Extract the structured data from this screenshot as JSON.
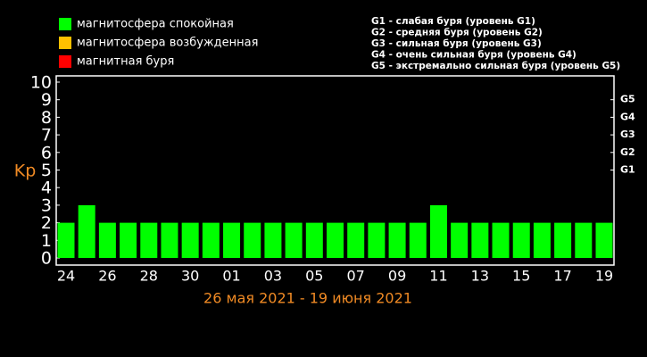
{
  "chart_data": {
    "type": "bar",
    "y_label": "Kp",
    "x_label": "26 мая 2021 - 19 июня 2021",
    "legend": [
      {
        "name": "магнитосфера спокойная",
        "color": "#00ff00"
      },
      {
        "name": "магнитосфера возбужденная",
        "color": "#ffc000"
      },
      {
        "name": "магнитная буря",
        "color": "#ff0000"
      }
    ],
    "storm_levels": [
      "G1 - слабая буря (уровень G1)",
      "G2 - средняя буря (уровень G2)",
      "G3 - сильная буря (уровень G3)",
      "G4 - очень сильная буря (уровень G4)",
      "G5 - экстремально сильная буря (уровень G5)"
    ],
    "categories": [
      "24",
      null,
      "26",
      null,
      "28",
      null,
      "30",
      null,
      "01",
      null,
      "03",
      null,
      "05",
      null,
      "07",
      null,
      "09",
      null,
      "11",
      null,
      "13",
      null,
      "15",
      null,
      "17",
      null,
      "19"
    ],
    "series": [
      {
        "name": "Kp",
        "color": "#00ff00",
        "values": [
          2,
          3,
          2,
          2,
          2,
          2,
          2,
          2,
          2,
          2,
          2,
          2,
          2,
          2,
          2,
          2,
          2,
          2,
          3,
          2,
          2,
          2,
          2,
          2,
          2,
          2,
          2
        ]
      }
    ],
    "ylim": [
      0,
      10
    ],
    "yticks": [
      0,
      1,
      2,
      3,
      4,
      5,
      6,
      7,
      8,
      9,
      10
    ],
    "y2lim": [
      0,
      10
    ],
    "y2ticks": [
      {
        "value": 5,
        "label": "G1"
      },
      {
        "value": 6,
        "label": "G2"
      },
      {
        "value": 7,
        "label": "G3"
      },
      {
        "value": 8,
        "label": "G4"
      },
      {
        "value": 9,
        "label": "G5"
      }
    ]
  }
}
